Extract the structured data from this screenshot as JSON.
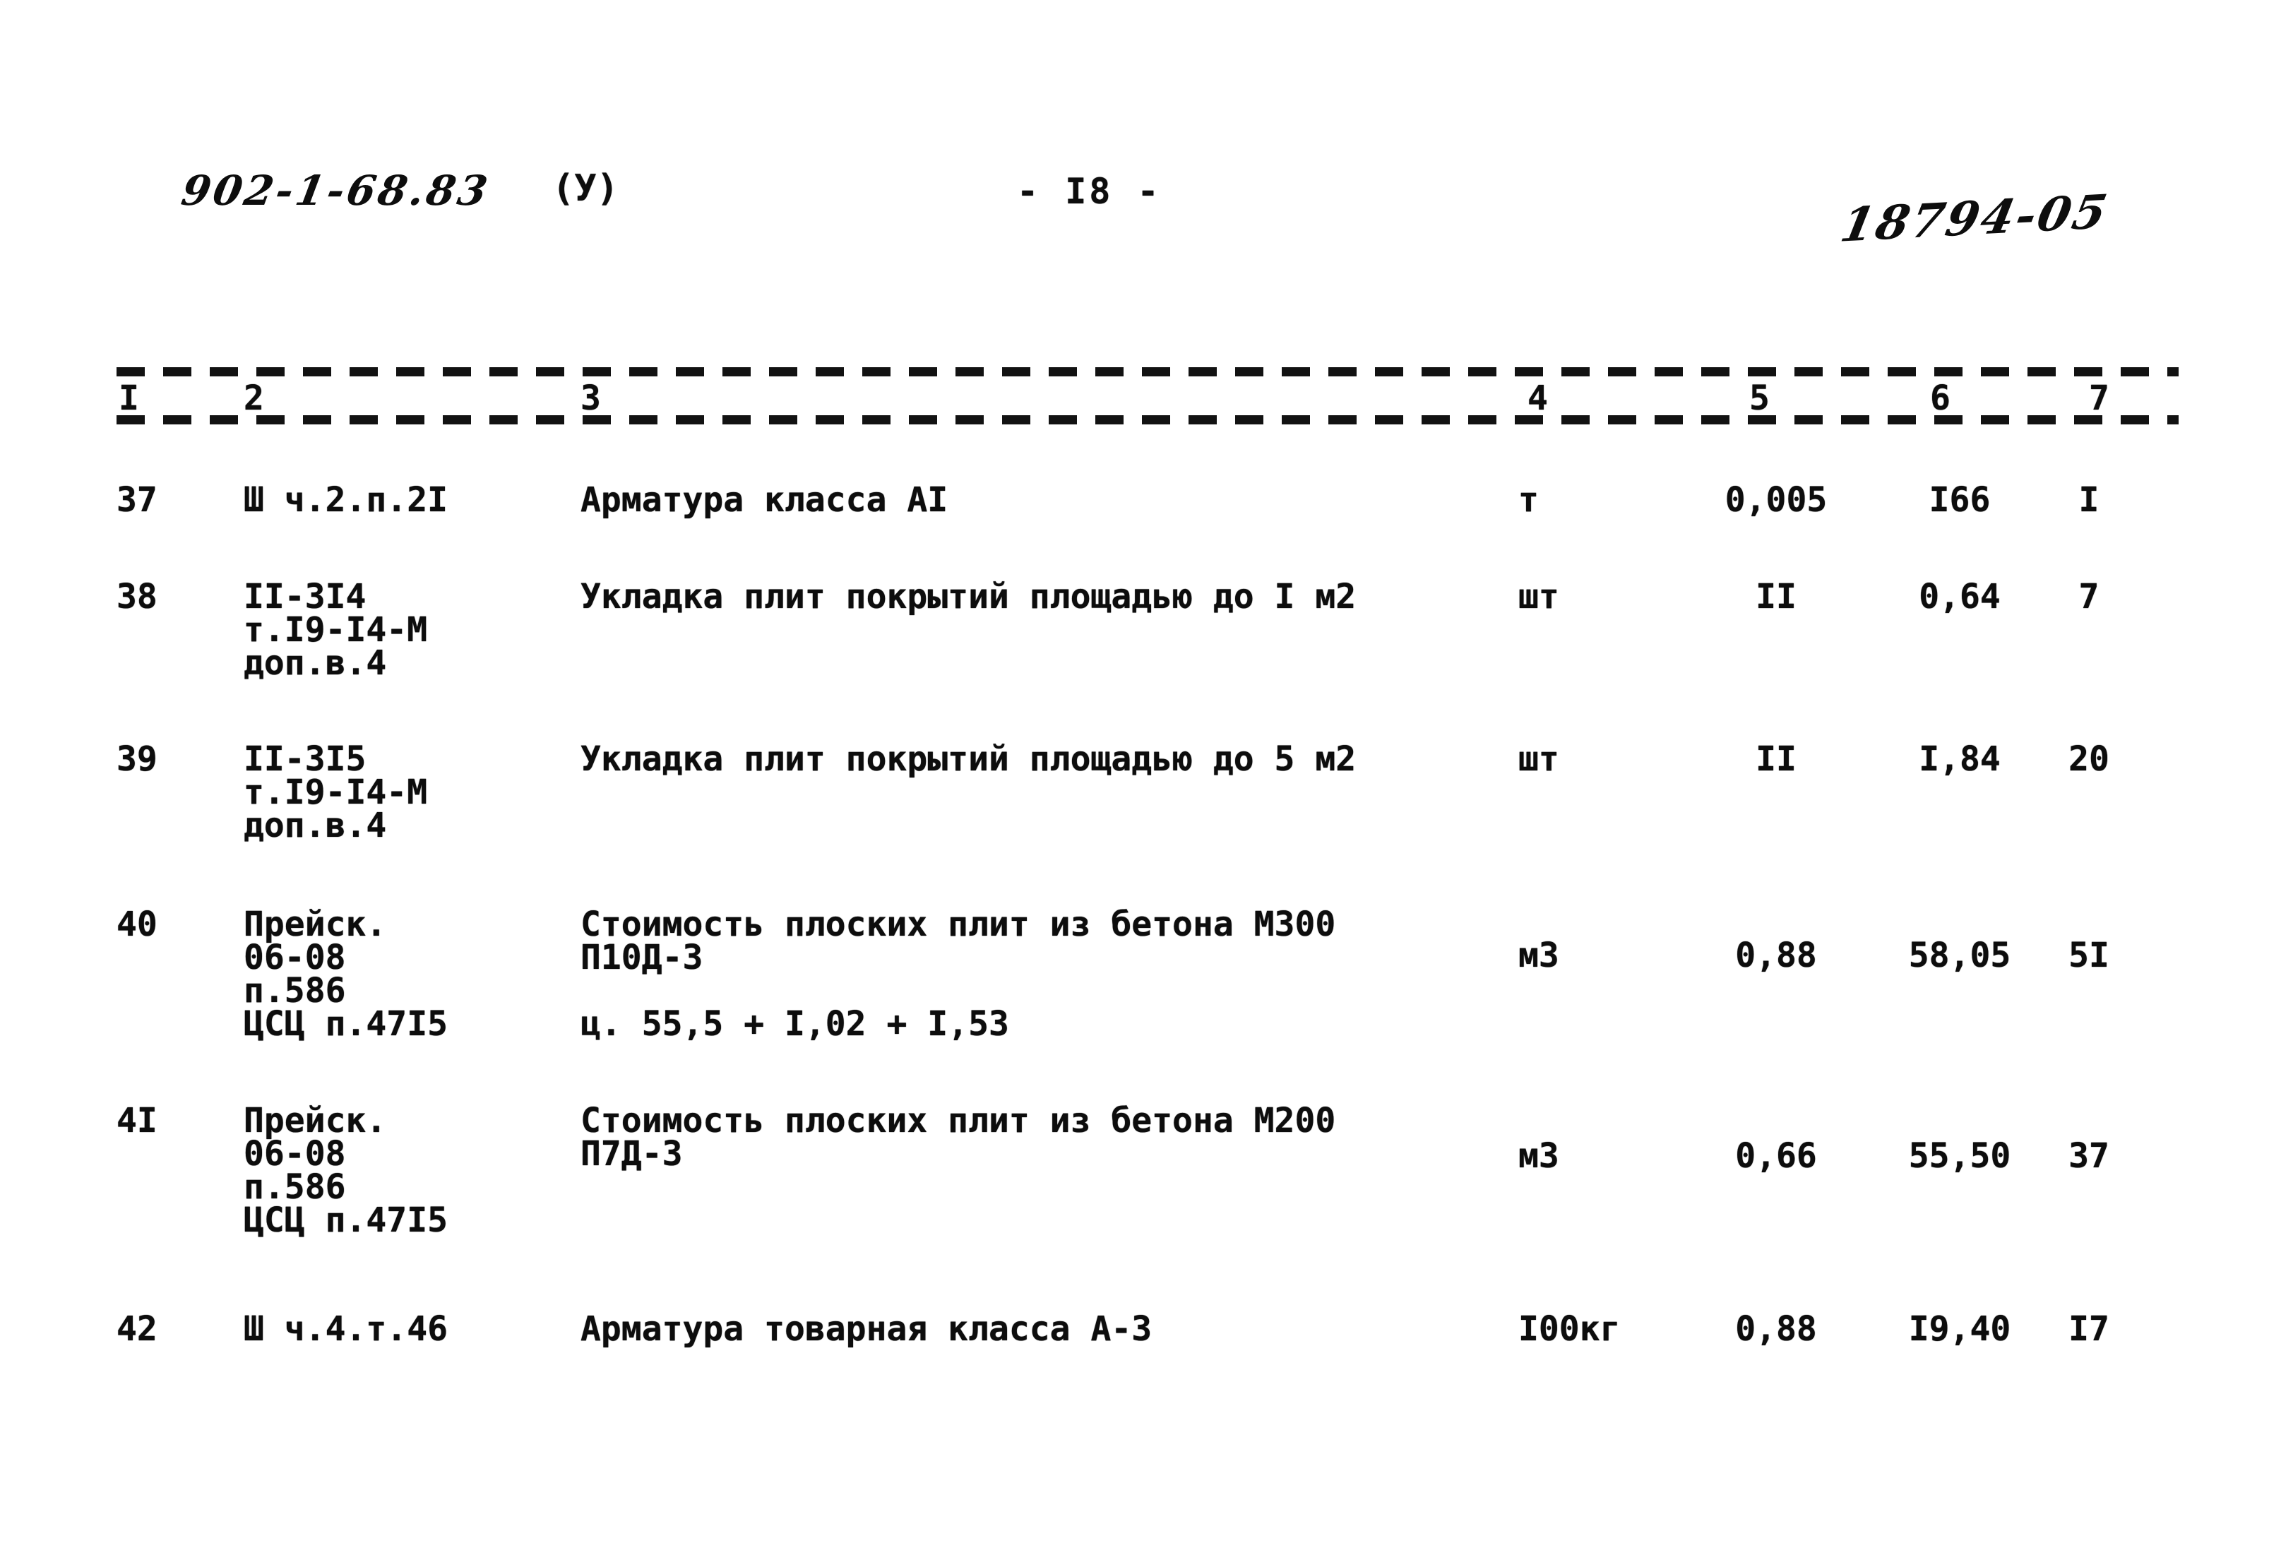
{
  "header": {
    "doc_number": "902-1-68.83",
    "doc_suffix": "(У)",
    "page_number": "- I8 -",
    "stamp": "18794-05"
  },
  "table": {
    "column_numbers": [
      "I",
      "2",
      "3",
      "4",
      "5",
      "6",
      "7"
    ],
    "rows": [
      {
        "num": "37",
        "code_lines": [
          "Ш ч.2.п.2I"
        ],
        "desc_lines": [
          "Арматура класса АI"
        ],
        "unit": "т",
        "qty": "0,005",
        "price": "I66",
        "total": "I"
      },
      {
        "num": "38",
        "code_lines": [
          "II-3I4",
          "т.I9-I4-М",
          "доп.в.4"
        ],
        "desc_lines": [
          "Укладка плит покрытий площадью до I м2"
        ],
        "unit": "шт",
        "qty": "II",
        "price": "0,64",
        "total": "7"
      },
      {
        "num": "39",
        "code_lines": [
          "II-3I5",
          "т.I9-I4-М",
          "доп.в.4"
        ],
        "desc_lines": [
          "Укладка плит покрытий площадью до 5 м2"
        ],
        "unit": "шт",
        "qty": "II",
        "price": "I,84",
        "total": "20"
      },
      {
        "num": "40",
        "code_lines": [
          "Прейск.",
          "06-08",
          "п.586",
          "ЦСЦ п.47I5"
        ],
        "desc_lines": [
          "Стоимость плоских плит из бетона М300",
          "П10Д-3",
          "",
          "ц. 55,5 + I,02 + I,53"
        ],
        "unit": "м3",
        "qty": "0,88",
        "price": "58,05",
        "total": "5I"
      },
      {
        "num": "4I",
        "code_lines": [
          "Прейск.",
          "06-08",
          "п.586",
          "ЦСЦ п.47I5"
        ],
        "desc_lines": [
          "Стоимость плоских плит из бетона М200",
          "П7Д-3"
        ],
        "unit": "м3",
        "qty": "0,66",
        "price": "55,50",
        "total": "37"
      },
      {
        "num": "42",
        "code_lines": [
          "Ш ч.4.т.46"
        ],
        "desc_lines": [
          "Арматура товарная класса А-3"
        ],
        "unit": "I00кг",
        "qty": "0,88",
        "price": "I9,40",
        "total": "I7"
      }
    ]
  }
}
